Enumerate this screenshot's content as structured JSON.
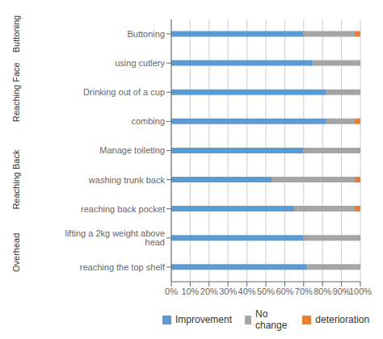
{
  "chart_data": {
    "type": "bar",
    "orientation": "horizontal",
    "stacked": true,
    "categories": [
      "reaching the top shelf",
      "lifting a 2kg weight above head",
      "reaching back pocket",
      "washing trunk back",
      "Manage toileting",
      "combing",
      "Drinking out of a cup",
      "using cutlery",
      "Buttoning"
    ],
    "groups": [
      {
        "label": "Overhead",
        "categories": [
          "reaching the top shelf",
          "lifting a 2kg weight above head"
        ]
      },
      {
        "label": "Reaching Back",
        "categories": [
          "reaching back pocket",
          "washing trunk back",
          "Manage toileting"
        ]
      },
      {
        "label": "Reaching Face",
        "categories": [
          "combing",
          "Drinking out of a cup",
          "using cutlery"
        ]
      },
      {
        "label": "Buttoning",
        "categories": [
          "Buttoning"
        ]
      }
    ],
    "series": [
      {
        "name": "Improvement",
        "color": "#5B9BD5",
        "values": [
          72,
          70,
          65,
          53,
          70,
          82,
          82,
          75,
          70
        ]
      },
      {
        "name": "No change",
        "color": "#A5A5A5",
        "values": [
          28,
          30,
          32,
          44,
          30,
          15,
          18,
          25,
          27
        ]
      },
      {
        "name": "deterioration",
        "color": "#ED7D31",
        "values": [
          0,
          0,
          3,
          3,
          0,
          3,
          0,
          0,
          3
        ]
      }
    ],
    "xlim": [
      0,
      100
    ],
    "xticks": [
      {
        "value": 0,
        "label": "0%"
      },
      {
        "value": 10,
        "label": "10%"
      },
      {
        "value": 20,
        "label": "20%"
      },
      {
        "value": 30,
        "label": "30%"
      },
      {
        "value": 40,
        "label": "40%"
      },
      {
        "value": 50,
        "label": "50%"
      },
      {
        "value": 60,
        "label": "60%"
      },
      {
        "value": 70,
        "label": "70%"
      },
      {
        "value": 80,
        "label": "80%"
      },
      {
        "value": 90,
        "label": "90%"
      },
      {
        "value": 100,
        "label": "100%"
      }
    ],
    "grid": true,
    "legend": "bottom"
  }
}
